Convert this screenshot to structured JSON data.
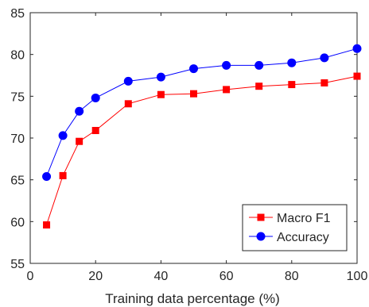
{
  "chart_data": {
    "type": "line",
    "title": "",
    "xlabel": "Training data percentage (%)",
    "ylabel": "",
    "xlim": [
      0,
      100
    ],
    "ylim": [
      55,
      85
    ],
    "xticks": [
      0,
      20,
      40,
      60,
      80,
      100
    ],
    "yticks": [
      55,
      60,
      65,
      70,
      75,
      80,
      85
    ],
    "grid": false,
    "legend_position": "bottom-right",
    "x": [
      5,
      10,
      15,
      20,
      30,
      40,
      50,
      60,
      70,
      80,
      90,
      100
    ],
    "series": [
      {
        "name": "Macro F1",
        "color": "#ff0000",
        "marker": "square",
        "values": [
          59.6,
          65.5,
          69.6,
          70.9,
          74.1,
          75.2,
          75.3,
          75.8,
          76.2,
          76.4,
          76.6,
          77.4
        ]
      },
      {
        "name": "Accuracy",
        "color": "#0000ff",
        "marker": "circle",
        "values": [
          65.4,
          70.3,
          73.2,
          74.8,
          76.8,
          77.3,
          78.3,
          78.7,
          78.7,
          79.0,
          79.6,
          80.7
        ]
      }
    ]
  }
}
